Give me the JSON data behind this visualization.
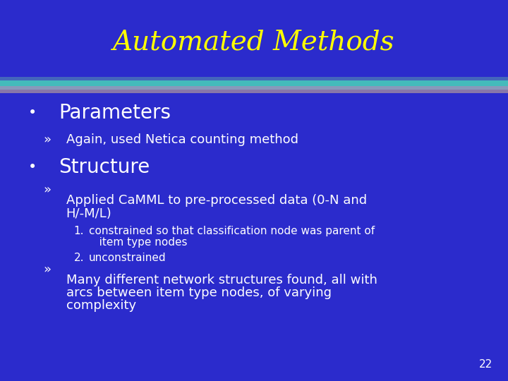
{
  "title": "Automated Methods",
  "title_color": "#FFFF00",
  "title_fontsize": 28,
  "background_color": "#2B2BCC",
  "slide_number": "22",
  "bullet1_text": "Parameters",
  "bullet1_sub": "Again, used Netica counting method",
  "bullet2_text": "Structure",
  "bullet2_sub1_line1": "Applied CaMML to pre-processed data (0-N and",
  "bullet2_sub1_line2": "H/-M/L)",
  "bullet2_sub1_num1_line1": "constrained so that classification node was parent of",
  "bullet2_sub1_num1_line2": "   item type nodes",
  "bullet2_sub1_num2": "unconstrained",
  "bullet2_sub2_line1": "Many different network structures found, all with",
  "bullet2_sub2_line2": "arcs between item type nodes, of varying",
  "bullet2_sub2_line3": "complexity",
  "text_color": "#FFFFFF",
  "body_fontsize": 13,
  "bullet_main_fontsize": 20,
  "num_fontsize": 11,
  "bar1_color": "#7B68B0",
  "bar2_color": "#9999BB",
  "bar3_color": "#44BBBB",
  "bar4_color": "#3355AA"
}
